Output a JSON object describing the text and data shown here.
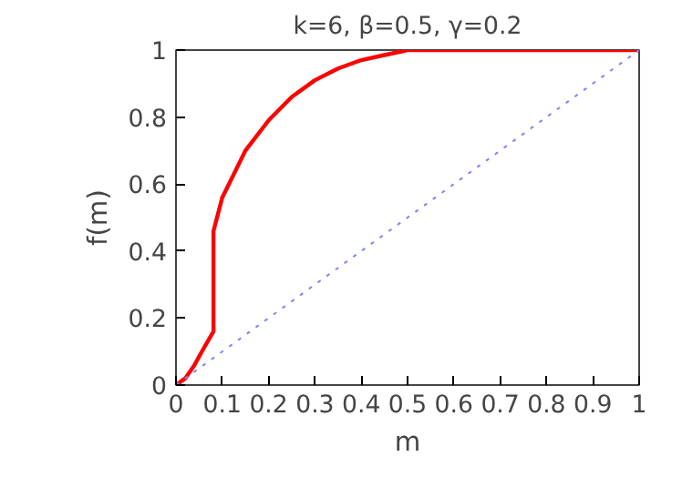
{
  "chart_data": {
    "type": "line",
    "title": "k=6, β=0.5, γ=0.2",
    "xlabel": "m",
    "ylabel": "f(m)",
    "series": [
      {
        "color": "#ff0000",
        "x": [
          0,
          0.02,
          0.04,
          0.06,
          0.081,
          0.081,
          0.1,
          0.15,
          0.2,
          0.25,
          0.3,
          0.35,
          0.4,
          0.45,
          0.5,
          1
        ],
        "values": [
          0,
          0.02,
          0.06,
          0.11,
          0.16,
          0.46,
          0.56,
          0.7,
          0.79,
          0.86,
          0.91,
          0.945,
          0.97,
          0.985,
          1,
          1
        ]
      },
      {
        "color": "#8080ff",
        "line_style": "dotted",
        "x": [
          0,
          1
        ],
        "values": [
          0,
          1
        ]
      }
    ],
    "xlim": [
      0,
      1
    ],
    "ylim": [
      0,
      1
    ],
    "xticks": [
      0,
      0.1,
      0.2,
      0.3,
      0.4,
      0.5,
      0.6,
      0.7,
      0.8,
      0.9,
      1
    ],
    "yticks": [
      0,
      0.2,
      0.4,
      0.6,
      0.8,
      1
    ],
    "grid": false
  }
}
